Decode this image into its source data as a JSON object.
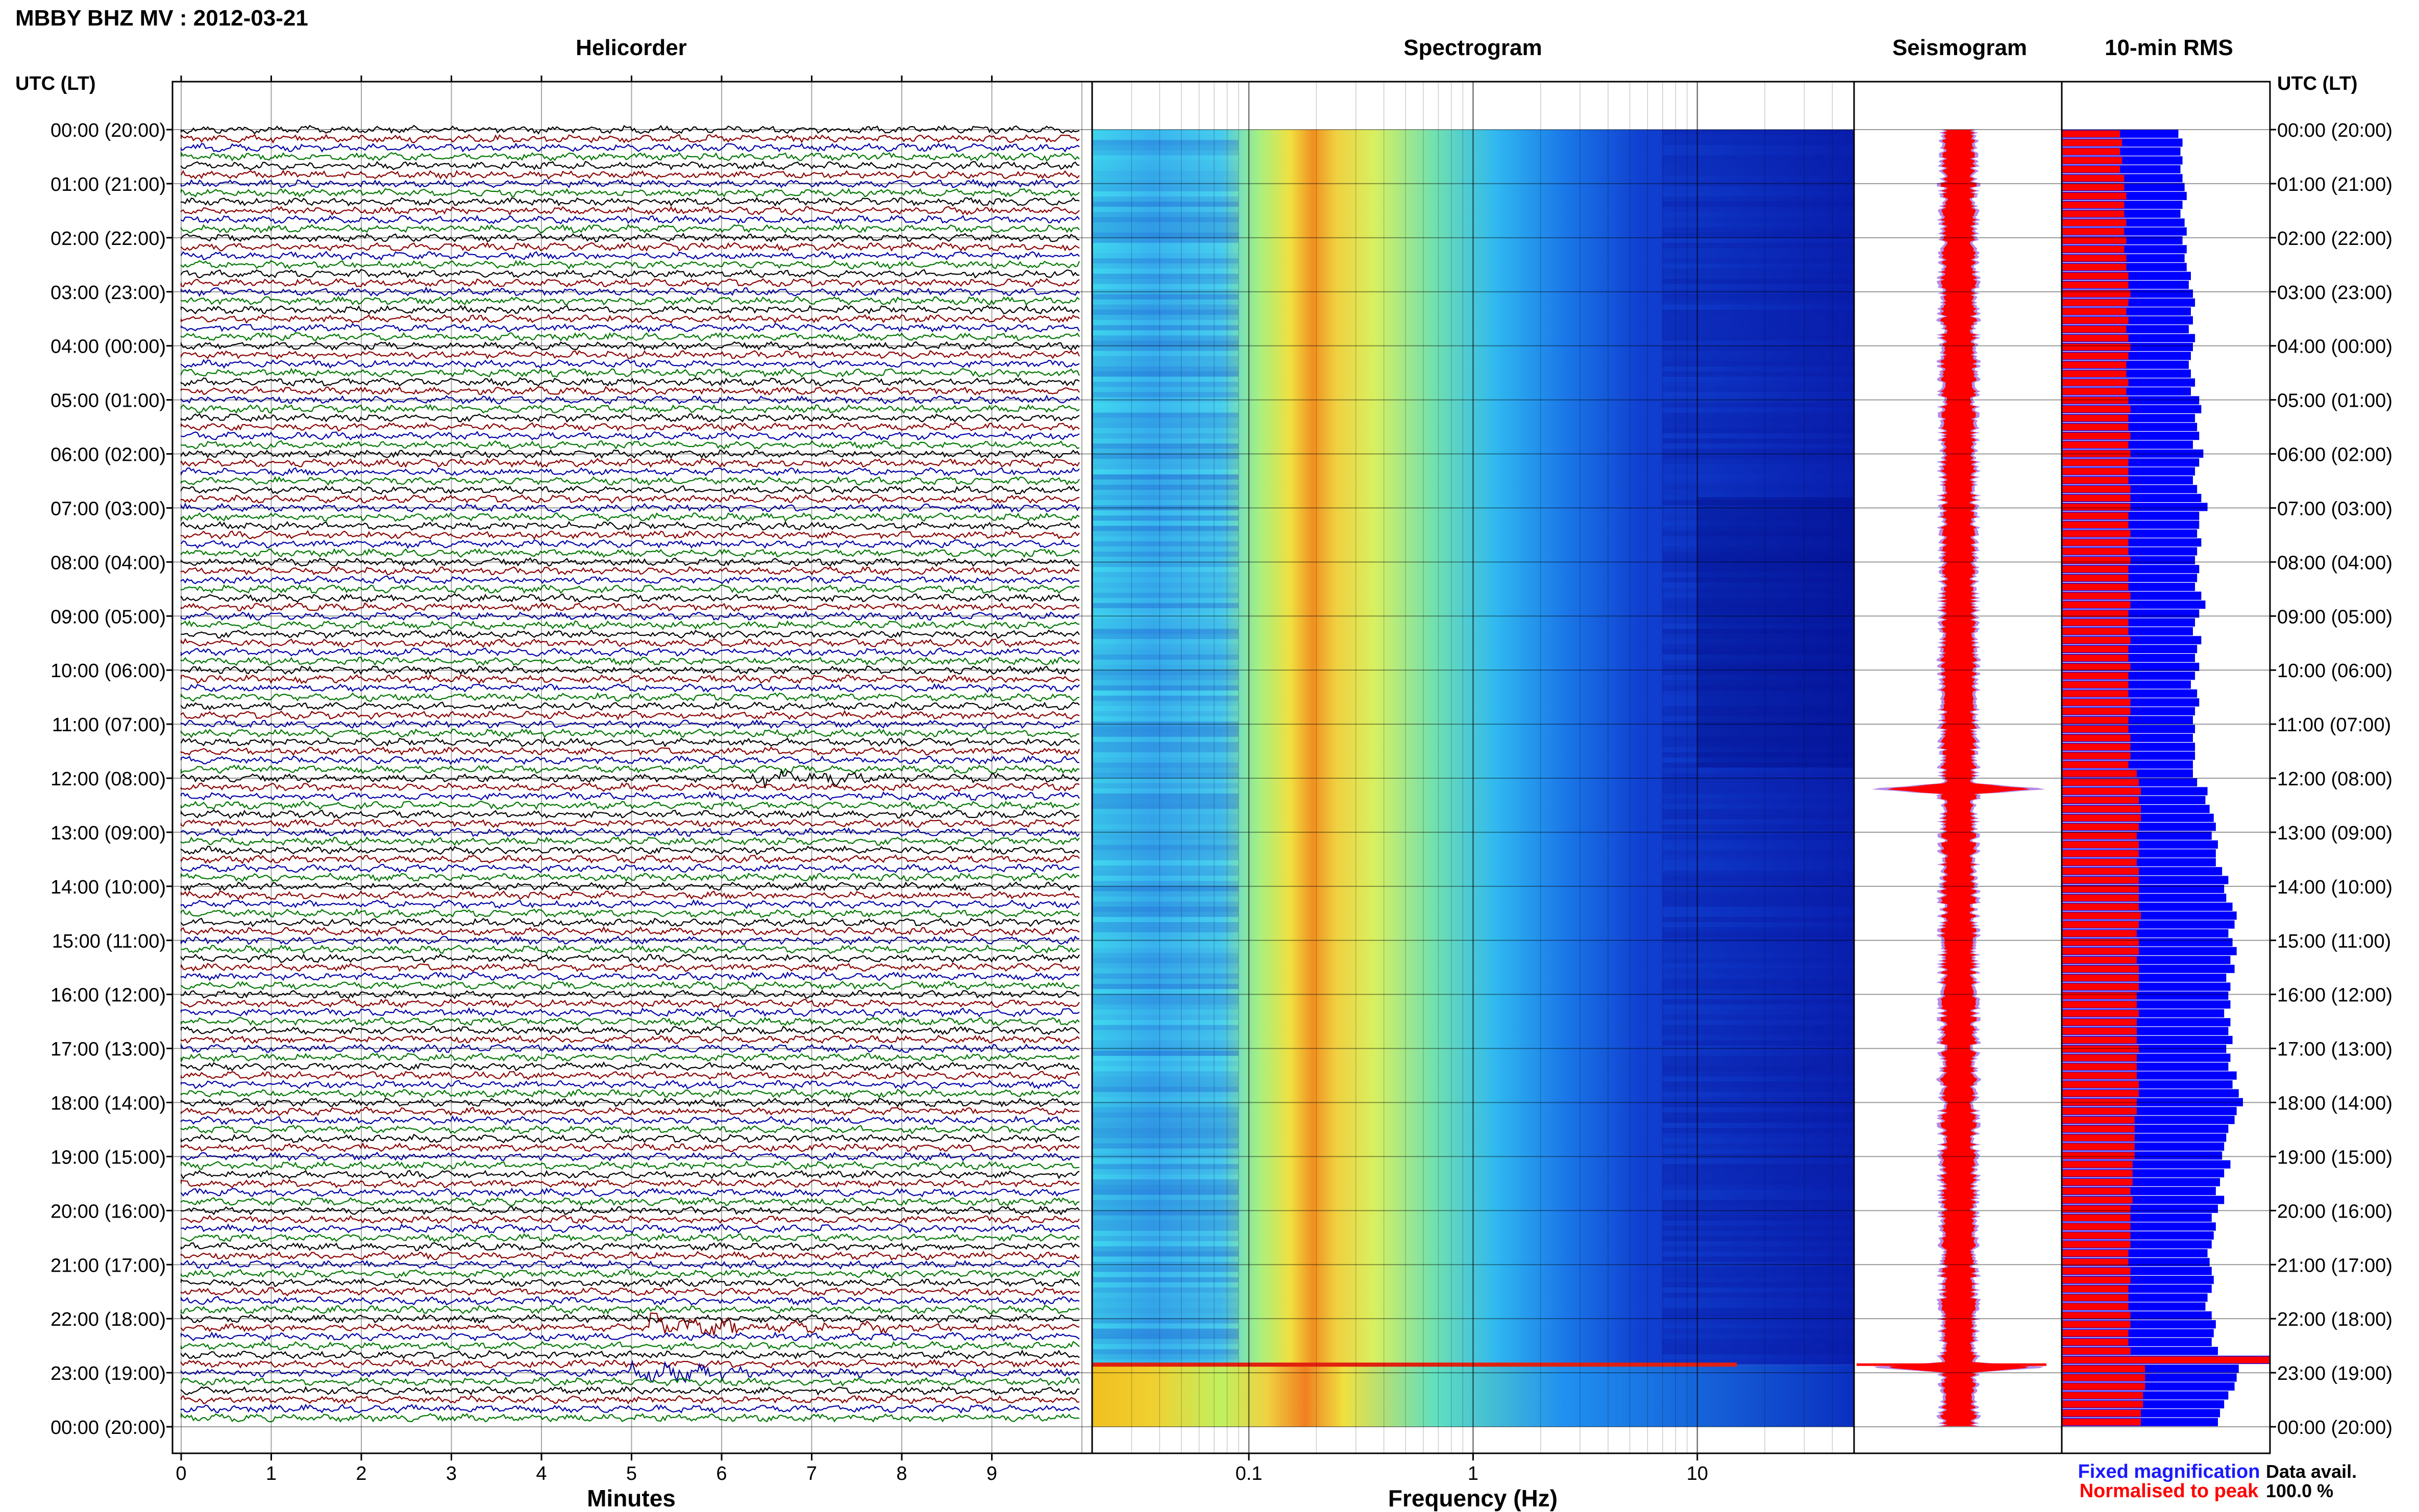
{
  "header": {
    "title": "MBBY BHZ MV : 2012-03-21"
  },
  "panels": {
    "helicorder": "Helicorder",
    "spectrogram": "Spectrogram",
    "seismogram": "Seismogram",
    "rms": "10-min RMS"
  },
  "axis": {
    "time_header": "UTC (LT)",
    "minutes_label": "Minutes",
    "frequency_label": "Frequency (Hz)"
  },
  "legend": {
    "fixed": "Fixed magnification",
    "normalised": "Normalised to peak",
    "fixed_color": "#1a1aff",
    "normalised_color": "#ff0000"
  },
  "availability": {
    "label": "Data avail.",
    "value": "100.0 %"
  },
  "colors": {
    "trace_cycle": [
      "#000000",
      "#8b0000",
      "#0000aa",
      "#007700"
    ],
    "rms_fixed": "#0000ff",
    "rms_norm": "#ff0000",
    "seis_env": "#ff0000"
  },
  "chart_data": [
    {
      "type": "line",
      "name": "helicorder",
      "title": "Helicorder",
      "xlabel": "Minutes",
      "xlim": [
        0,
        10
      ],
      "x_ticks": [
        "0",
        "1",
        "2",
        "3",
        "4",
        "5",
        "6",
        "7",
        "8",
        "9"
      ],
      "y_ticks": [
        "00:00 (20:00)",
        "01:00 (21:00)",
        "02:00 (22:00)",
        "03:00 (23:00)",
        "04:00 (00:00)",
        "05:00 (01:00)",
        "06:00 (02:00)",
        "07:00 (03:00)",
        "08:00 (04:00)",
        "09:00 (05:00)",
        "10:00 (06:00)",
        "11:00 (07:00)",
        "12:00 (08:00)",
        "13:00 (09:00)",
        "14:00 (10:00)",
        "15:00 (11:00)",
        "16:00 (12:00)",
        "17:00 (13:00)",
        "18:00 (14:00)",
        "19:00 (15:00)",
        "20:00 (16:00)",
        "21:00 (17:00)",
        "22:00 (18:00)",
        "23:00 (19:00)",
        "00:00 (20:00)"
      ],
      "traces_per_hour": 6,
      "events": [
        {
          "row": 72,
          "minute": 6.3,
          "amp": 3
        },
        {
          "row": 133,
          "minute": 5.2,
          "amp": 4
        },
        {
          "row": 138,
          "minute": 5.0,
          "amp": 3
        }
      ]
    },
    {
      "type": "heatmap",
      "name": "spectrogram",
      "title": "Spectrogram",
      "xlabel": "Frequency (Hz)",
      "xscale": "log",
      "xlim": [
        0.02,
        50
      ],
      "x_ticks": [
        "0.1",
        "1",
        "10"
      ],
      "peak_frequency_hz": 0.25,
      "colormap": [
        "#0a1ab8",
        "#1a5ae8",
        "#2aa0f0",
        "#40e0f0",
        "#a0f080",
        "#f0f040",
        "#f0a020",
        "#e02010"
      ]
    },
    {
      "type": "area",
      "name": "seismogram",
      "title": "Seismogram",
      "event_hours": [
        12.2,
        22.9
      ]
    },
    {
      "type": "bar",
      "name": "rms",
      "title": "10-min RMS",
      "series": [
        {
          "name": "Fixed magnification",
          "values": [
            0.56,
            0.58,
            0.57,
            0.58,
            0.57,
            0.58,
            0.59,
            0.6,
            0.58,
            0.57,
            0.59,
            0.6,
            0.58,
            0.6,
            0.59,
            0.6,
            0.62,
            0.61,
            0.63,
            0.64,
            0.62,
            0.63,
            0.61,
            0.64,
            0.63,
            0.62,
            0.61,
            0.62,
            0.64,
            0.62,
            0.66,
            0.67,
            0.64,
            0.65,
            0.66,
            0.63,
            0.68,
            0.66,
            0.64,
            0.63,
            0.65,
            0.67,
            0.7,
            0.66,
            0.66,
            0.65,
            0.67,
            0.65,
            0.64,
            0.66,
            0.65,
            0.64,
            0.67,
            0.69,
            0.66,
            0.64,
            0.63,
            0.67,
            0.65,
            0.64,
            0.66,
            0.64,
            0.62,
            0.65,
            0.66,
            0.64,
            0.63,
            0.64,
            0.63,
            0.64,
            0.64,
            0.63,
            0.63,
            0.65,
            0.7,
            0.69,
            0.71,
            0.73,
            0.74,
            0.72,
            0.75,
            0.74,
            0.74,
            0.77,
            0.8,
            0.78,
            0.79,
            0.82,
            0.84,
            0.83,
            0.8,
            0.82,
            0.84,
            0.81,
            0.83,
            0.79,
            0.81,
            0.8,
            0.81,
            0.78,
            0.81,
            0.8,
            0.82,
            0.79,
            0.81,
            0.8,
            0.84,
            0.82,
            0.85,
            0.87,
            0.84,
            0.83,
            0.8,
            0.79,
            0.78,
            0.77,
            0.81,
            0.78,
            0.76,
            0.74,
            0.78,
            0.75,
            0.72,
            0.74,
            0.73,
            0.72,
            0.7,
            0.71,
            0.72,
            0.73,
            0.72,
            0.7,
            0.69,
            0.72,
            0.74,
            0.73,
            0.72,
            0.75,
            1.0,
            0.85,
            0.84,
            0.83,
            0.8,
            0.78,
            0.76,
            0.75
          ]
        },
        {
          "name": "Normalised to peak",
          "values": [
            0.28,
            0.29,
            0.28,
            0.29,
            0.28,
            0.3,
            0.3,
            0.31,
            0.3,
            0.3,
            0.31,
            0.3,
            0.31,
            0.3,
            0.31,
            0.31,
            0.32,
            0.32,
            0.33,
            0.32,
            0.31,
            0.32,
            0.31,
            0.32,
            0.33,
            0.32,
            0.31,
            0.31,
            0.32,
            0.31,
            0.32,
            0.33,
            0.32,
            0.32,
            0.33,
            0.32,
            0.33,
            0.32,
            0.32,
            0.32,
            0.33,
            0.33,
            0.33,
            0.32,
            0.32,
            0.33,
            0.32,
            0.32,
            0.33,
            0.32,
            0.32,
            0.32,
            0.33,
            0.33,
            0.32,
            0.32,
            0.32,
            0.33,
            0.32,
            0.32,
            0.33,
            0.32,
            0.32,
            0.32,
            0.33,
            0.33,
            0.32,
            0.32,
            0.33,
            0.33,
            0.33,
            0.32,
            0.36,
            0.37,
            0.38,
            0.37,
            0.38,
            0.38,
            0.37,
            0.36,
            0.37,
            0.37,
            0.36,
            0.37,
            0.37,
            0.37,
            0.37,
            0.37,
            0.38,
            0.37,
            0.36,
            0.37,
            0.37,
            0.36,
            0.37,
            0.37,
            0.37,
            0.36,
            0.36,
            0.37,
            0.36,
            0.36,
            0.36,
            0.37,
            0.36,
            0.36,
            0.36,
            0.37,
            0.37,
            0.36,
            0.36,
            0.35,
            0.35,
            0.35,
            0.35,
            0.35,
            0.34,
            0.34,
            0.34,
            0.33,
            0.34,
            0.33,
            0.33,
            0.33,
            0.33,
            0.33,
            0.32,
            0.32,
            0.33,
            0.33,
            0.32,
            0.32,
            0.32,
            0.33,
            0.33,
            0.32,
            0.32,
            0.33,
            1.0,
            0.4,
            0.4,
            0.4,
            0.39,
            0.39,
            0.38,
            0.38
          ]
        }
      ]
    }
  ]
}
